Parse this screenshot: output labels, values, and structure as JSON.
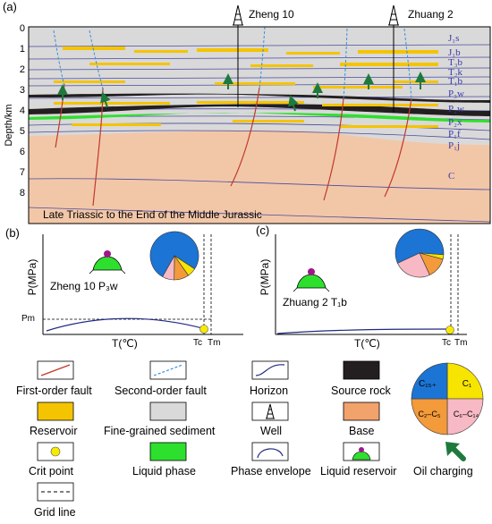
{
  "panel_a": {
    "label": "(a)",
    "wells": [
      {
        "name": "Zheng 10"
      },
      {
        "name": "Zhuang 2"
      }
    ],
    "depth_axis": {
      "title": "Depth/km",
      "ticks": [
        "0",
        "1",
        "2",
        "3",
        "4",
        "5",
        "6",
        "7",
        "8"
      ]
    },
    "strata": [
      "J₁s",
      "J₁b",
      "T₃b",
      "T₂k",
      "T₁b",
      "P₃w",
      "P₂w",
      "P₂x",
      "P₁f",
      "P₁j",
      "C"
    ],
    "caption": "Late Triassic to the End of the Middle Jurassic"
  },
  "panel_b": {
    "label": "(b)",
    "y_axis": "P(MPa)",
    "x_axis": "T(℃)",
    "title": "Zheng 10 P₃w",
    "pm_label": "Pm",
    "tc_label": "Tc",
    "tm_label": "Tm"
  },
  "panel_c": {
    "label": "(c)",
    "y_axis": "P(MPa)",
    "x_axis": "T(℃)",
    "title": "Zhuang 2 T₁b",
    "tc_label": "Tc",
    "tm_label": "Tm"
  },
  "legend": {
    "first_order_fault": "First-order fault",
    "second_order_fault": "Second-order fault",
    "horizon": "Horizon",
    "source_rock": "Source rock",
    "reservoir": "Reservoir",
    "fine_grained": "Fine-grained sediment",
    "well": "Well",
    "base": "Base",
    "crit_point": "Crit point",
    "liquid_phase": "Liquid phase",
    "phase_envelope": "Phase envelope",
    "liquid_reservoir": "Liquid reservoir",
    "grid_line": "Grid line",
    "oil_charging": "Oil charging",
    "pie_labels": {
      "c15": "C₁₅₊",
      "c1": "C₁",
      "c2c5": "C₂–C₅",
      "c6c14": "C₆–C₁₄"
    }
  },
  "colors": {
    "reservoir": "#f5c400",
    "source_rock": "#231f20",
    "fine_grained": "#d9d9d9",
    "base": "#f2c7a8",
    "liquid": "#2ee02e",
    "first_fault": "#c0392b",
    "second_fault": "#3b8fd9",
    "horizon": "#1f2a80",
    "arrow": "#1e7a3c",
    "pie_c15": "#1c74d4",
    "pie_c1": "#f7e400",
    "pie_c2c5": "#f39a3a",
    "pie_c6c14": "#f7b9c4"
  },
  "pie_b": {
    "c15": 0.76,
    "c1": 0.06,
    "c2c5": 0.1,
    "c6c14": 0.08
  },
  "pie_c": {
    "c15": 0.58,
    "c1": 0.03,
    "c2c5": 0.14,
    "c6c14": 0.25
  }
}
